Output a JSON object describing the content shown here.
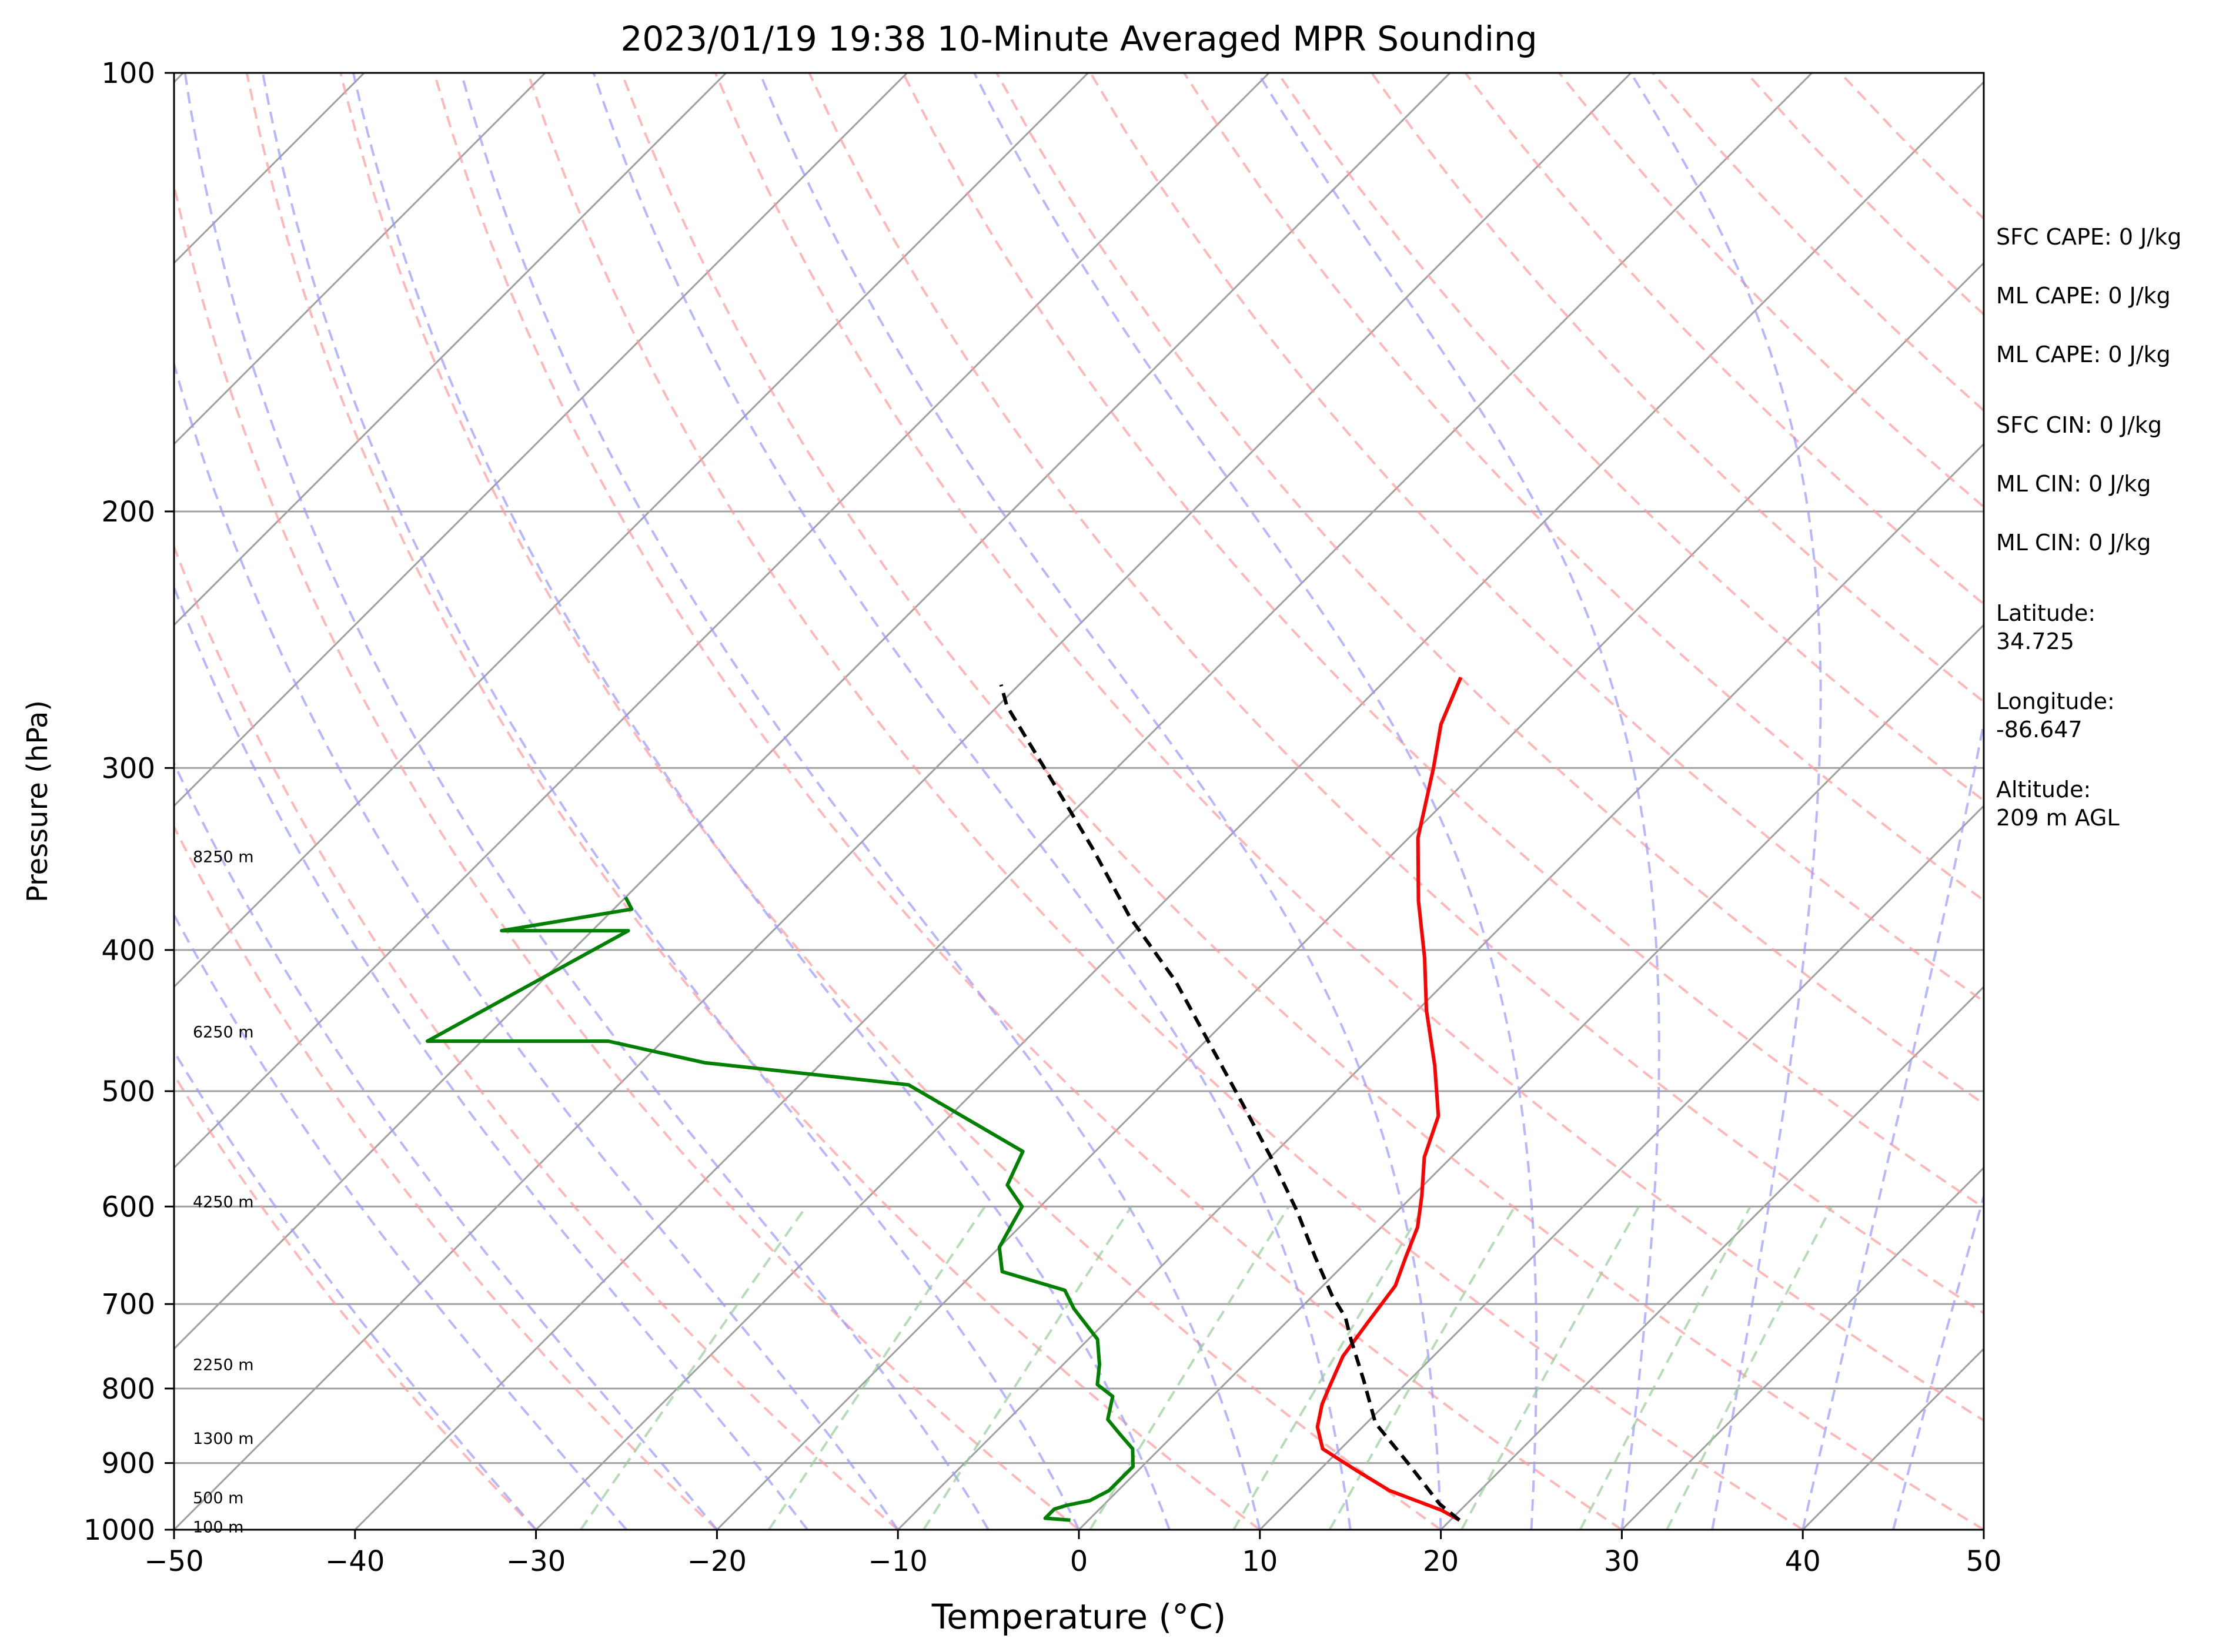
{
  "chart_data": {
    "type": "line",
    "title": "2023/01/19 19:38 10-Minute Averaged MPR Sounding",
    "xlabel": "Temperature (°C)",
    "ylabel": "Pressure (hPa)",
    "xlim": [
      -50,
      50
    ],
    "ylim": [
      1000,
      100
    ],
    "y_scale": "log",
    "x_ticks": [
      -50,
      -40,
      -30,
      -20,
      -10,
      0,
      10,
      20,
      30,
      40,
      50
    ],
    "x_tick_labels": [
      "−50",
      "−40",
      "−30",
      "−20",
      "−10",
      "0",
      "10",
      "20",
      "30",
      "40",
      "50"
    ],
    "y_ticks": [
      100,
      200,
      300,
      400,
      500,
      600,
      700,
      800,
      900,
      1000
    ],
    "y_tick_labels": [
      "100",
      "200",
      "300",
      "400",
      "500",
      "600",
      "700",
      "800",
      "900",
      "1000"
    ],
    "grid": true,
    "skew": true,
    "colors": {
      "temperature": "#ff0000",
      "dewpoint": "#008000",
      "parcel": "#000000",
      "dry_adiabat": "#ff9999",
      "moist_adiabat": "#9999ff",
      "mixing_ratio": "#99cc99",
      "isotherm": "#a0a0a0"
    },
    "series": [
      {
        "key": "temperature",
        "values": [
          [
            20.5,
            985
          ],
          [
            19.0,
            970
          ],
          [
            15.0,
            940
          ],
          [
            12.0,
            910
          ],
          [
            9.0,
            880
          ],
          [
            7.5,
            850
          ],
          [
            6.5,
            820
          ],
          [
            6.0,
            800
          ],
          [
            5.0,
            760
          ],
          [
            4.5,
            720
          ],
          [
            4.0,
            680
          ],
          [
            3.0,
            650
          ],
          [
            2.0,
            620
          ],
          [
            0.5,
            590
          ],
          [
            -1.5,
            555
          ],
          [
            -3.0,
            520
          ],
          [
            -6.0,
            480
          ],
          [
            -9.5,
            440
          ],
          [
            -12.5,
            405
          ],
          [
            -16.0,
            370
          ],
          [
            -19.5,
            335
          ],
          [
            -22.5,
            300
          ],
          [
            -24.5,
            280
          ],
          [
            -26.0,
            260
          ]
        ]
      },
      {
        "key": "dewpoint",
        "values": [
          [
            -1.0,
            985
          ],
          [
            -2.5,
            982
          ],
          [
            -2.5,
            968
          ],
          [
            -2.0,
            962
          ],
          [
            -1.0,
            955
          ],
          [
            -0.5,
            940
          ],
          [
            -0.5,
            920
          ],
          [
            -0.5,
            905
          ],
          [
            -1.5,
            880
          ],
          [
            -3.0,
            860
          ],
          [
            -4.5,
            840
          ],
          [
            -5.5,
            810
          ],
          [
            -7.0,
            795
          ],
          [
            -8.0,
            770
          ],
          [
            -9.5,
            740
          ],
          [
            -12.5,
            705
          ],
          [
            -14.0,
            685
          ],
          [
            -18.5,
            665
          ],
          [
            -20.0,
            640
          ],
          [
            -20.5,
            620
          ],
          [
            -21.0,
            600
          ],
          [
            -23.0,
            580
          ],
          [
            -24.0,
            550
          ],
          [
            -34.0,
            495
          ],
          [
            -46.5,
            478
          ],
          [
            -53.0,
            462
          ],
          [
            -63.0,
            462
          ],
          [
            -58.0,
            388
          ],
          [
            -65.0,
            388
          ],
          [
            -59.0,
            375
          ],
          [
            -60.0,
            368
          ]
        ]
      },
      {
        "key": "parcel",
        "values": [
          [
            20.5,
            985
          ],
          [
            18.5,
            960
          ],
          [
            14.5,
            900
          ],
          [
            10.5,
            845
          ],
          [
            7.5,
            790
          ],
          [
            4.5,
            740
          ],
          [
            3.0,
            715
          ],
          [
            1.0,
            690
          ],
          [
            -2.0,
            650
          ],
          [
            -5.5,
            605
          ],
          [
            -9.5,
            560
          ],
          [
            -14.5,
            510
          ],
          [
            -19.5,
            465
          ],
          [
            -25.0,
            420
          ],
          [
            -31.0,
            380
          ],
          [
            -37.0,
            340
          ],
          [
            -44.0,
            300
          ],
          [
            -49.5,
            272
          ],
          [
            -51.0,
            263
          ]
        ]
      }
    ],
    "height_labels": [
      {
        "label": "100 m",
        "p": 995
      },
      {
        "label": "500 m",
        "p": 950
      },
      {
        "label": "1300 m",
        "p": 865
      },
      {
        "label": "2250 m",
        "p": 770
      },
      {
        "label": "4250 m",
        "p": 595
      },
      {
        "label": "6250 m",
        "p": 455
      },
      {
        "label": "8250 m",
        "p": 345
      }
    ]
  },
  "info_panel": [
    {
      "text": "SFC CAPE: 0 J/kg"
    },
    {
      "text": "ML CAPE: 0 J/kg"
    },
    {
      "text": "ML CAPE: 0 J/kg"
    },
    {
      "text": "SFC CIN: 0 J/kg"
    },
    {
      "text": "ML CIN: 0 J/kg"
    },
    {
      "text": "ML CIN: 0 J/kg"
    },
    {
      "text": "Latitude:",
      "value": "34.725"
    },
    {
      "text": "Longitude:",
      "value": "-86.647"
    },
    {
      "text": "Altitude:",
      "value": "209 m AGL"
    }
  ]
}
